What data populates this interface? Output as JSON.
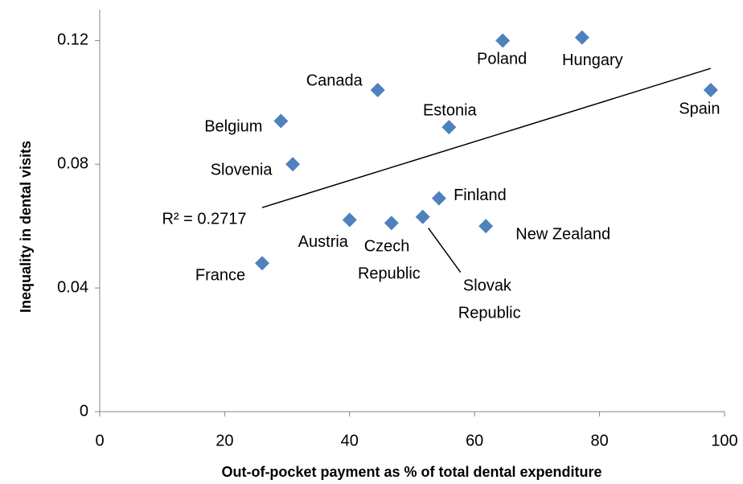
{
  "chart_data": {
    "type": "scatter",
    "x_label": "Out-of-pocket payment as % of total dental expenditure",
    "y_label": "Inequality  in dental visits",
    "categories": [
      "France",
      "Belgium",
      "Slovenia",
      "Canada",
      "Austria",
      "Czech Republic",
      "Slovak Republic",
      "Finland",
      "Estonia",
      "New Zealand",
      "Poland",
      "Hungary",
      "Spain"
    ],
    "x": [
      26.0,
      29.0,
      30.9,
      44.5,
      40.0,
      46.7,
      51.7,
      54.3,
      55.9,
      61.8,
      64.5,
      77.2,
      97.8
    ],
    "values": [
      0.048,
      0.094,
      0.08,
      0.104,
      0.062,
      0.061,
      0.063,
      0.069,
      0.092,
      0.06,
      0.12,
      0.121,
      0.104
    ],
    "color": "#4f81bd",
    "trendline": {
      "x": [
        26.0,
        97.8
      ],
      "y": [
        0.066,
        0.111
      ],
      "label": "R² = 0.2717"
    },
    "xlim": [
      0,
      100
    ],
    "xticks": [
      0,
      20,
      40,
      60,
      80,
      100
    ],
    "ylim": [
      0,
      0.13
    ],
    "yticks": [
      0,
      0.04,
      0.08,
      0.12
    ],
    "grid": false
  }
}
